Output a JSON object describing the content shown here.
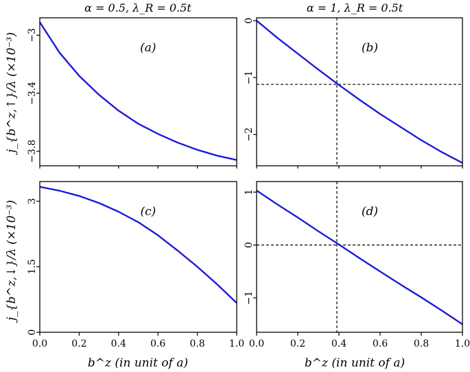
{
  "figure": {
    "column_titles": [
      "α = 0.5, λ_R = 0.5t",
      "α = 1, λ_R = 0.5t"
    ],
    "row_ylabels": [
      "j_{b^z,↑}/λ (×10⁻³)",
      "j_{b^z,↓}/λ (×10⁻³)"
    ],
    "xlabel": "b^z (in unit of a)",
    "colors": {
      "curve": "#1a1adb",
      "axes": "#000000",
      "guide": "#000000"
    }
  },
  "chart_data": [
    {
      "type": "line",
      "panel_label": "(a)",
      "title": "α = 0.5, λ_R = 0.5t",
      "ylabel": "j_{b^z,↑}/λ (×10⁻³)",
      "xlabel": "",
      "xlim": [
        0,
        1.0
      ],
      "ylim": [
        -3.9,
        -2.88
      ],
      "xticks": [],
      "yticks": [
        -3.0,
        -3.4,
        -3.8
      ],
      "ytick_labels": [
        "−3",
        "−3.4",
        "−3.8"
      ],
      "x": [
        0,
        0.1,
        0.2,
        0.3,
        0.4,
        0.5,
        0.6,
        0.7,
        0.8,
        0.9,
        1.0
      ],
      "series": [
        {
          "values": [
            -2.91,
            -3.12,
            -3.28,
            -3.41,
            -3.52,
            -3.61,
            -3.68,
            -3.74,
            -3.79,
            -3.83,
            -3.86
          ]
        }
      ],
      "guides": []
    },
    {
      "type": "line",
      "panel_label": "(b)",
      "title": "α = 1, λ_R = 0.5t",
      "ylabel": "",
      "xlabel": "",
      "xlim": [
        0,
        1.0
      ],
      "ylim": [
        -2.55,
        0.05
      ],
      "xticks": [],
      "yticks": [
        0,
        -1,
        -2
      ],
      "ytick_labels": [
        "0",
        "−1",
        "−2"
      ],
      "x": [
        0,
        0.1,
        0.2,
        0.3,
        0.4,
        0.5,
        0.6,
        0.7,
        0.8,
        0.9,
        1.0
      ],
      "series": [
        {
          "values": [
            0,
            -0.3,
            -0.58,
            -0.86,
            -1.13,
            -1.39,
            -1.64,
            -1.87,
            -2.1,
            -2.31,
            -2.5
          ]
        }
      ],
      "guides": [
        {
          "axis": "x",
          "value": 0.39
        },
        {
          "axis": "y",
          "value": -1.12
        }
      ]
    },
    {
      "type": "line",
      "panel_label": "(c)",
      "title": "",
      "ylabel": "j_{b^z,↓}/λ (×10⁻³)",
      "xlabel": "b^z (in unit of a)",
      "xlim": [
        0,
        1.0
      ],
      "ylim": [
        0,
        3.45
      ],
      "xticks": [
        0.0,
        0.2,
        0.4,
        0.6,
        0.8,
        1.0
      ],
      "xtick_labels": [
        "0.0",
        "0.2",
        "0.4",
        "0.6",
        "0.8",
        "1.0"
      ],
      "yticks": [
        0,
        1.5,
        3
      ],
      "ytick_labels": [
        "0",
        "1.5",
        "3"
      ],
      "x": [
        0,
        0.1,
        0.2,
        0.3,
        0.4,
        0.5,
        0.6,
        0.7,
        0.8,
        0.9,
        1.0
      ],
      "series": [
        {
          "values": [
            3.33,
            3.24,
            3.12,
            2.96,
            2.76,
            2.52,
            2.22,
            1.87,
            1.5,
            1.1,
            0.67
          ]
        }
      ],
      "guides": []
    },
    {
      "type": "line",
      "panel_label": "(d)",
      "title": "",
      "ylabel": "",
      "xlabel": "b^z (in unit of a)",
      "xlim": [
        0,
        1.0
      ],
      "ylim": [
        -1.65,
        1.2
      ],
      "xticks": [
        0.0,
        0.2,
        0.4,
        0.6,
        0.8,
        1.0
      ],
      "xtick_labels": [
        "0.0",
        "0.2",
        "0.4",
        "0.6",
        "0.8",
        "1.0"
      ],
      "yticks": [
        1,
        0,
        -1
      ],
      "ytick_labels": [
        "1",
        "0",
        "−1"
      ],
      "x": [
        0,
        0.1,
        0.2,
        0.3,
        0.4,
        0.5,
        0.6,
        0.7,
        0.8,
        0.9,
        1.0
      ],
      "series": [
        {
          "values": [
            1.03,
            0.77,
            0.52,
            0.26,
            0.01,
            -0.25,
            -0.5,
            -0.75,
            -0.99,
            -1.24,
            -1.5
          ]
        }
      ],
      "guides": [
        {
          "axis": "x",
          "value": 0.39
        },
        {
          "axis": "y",
          "value": 0
        }
      ]
    }
  ]
}
